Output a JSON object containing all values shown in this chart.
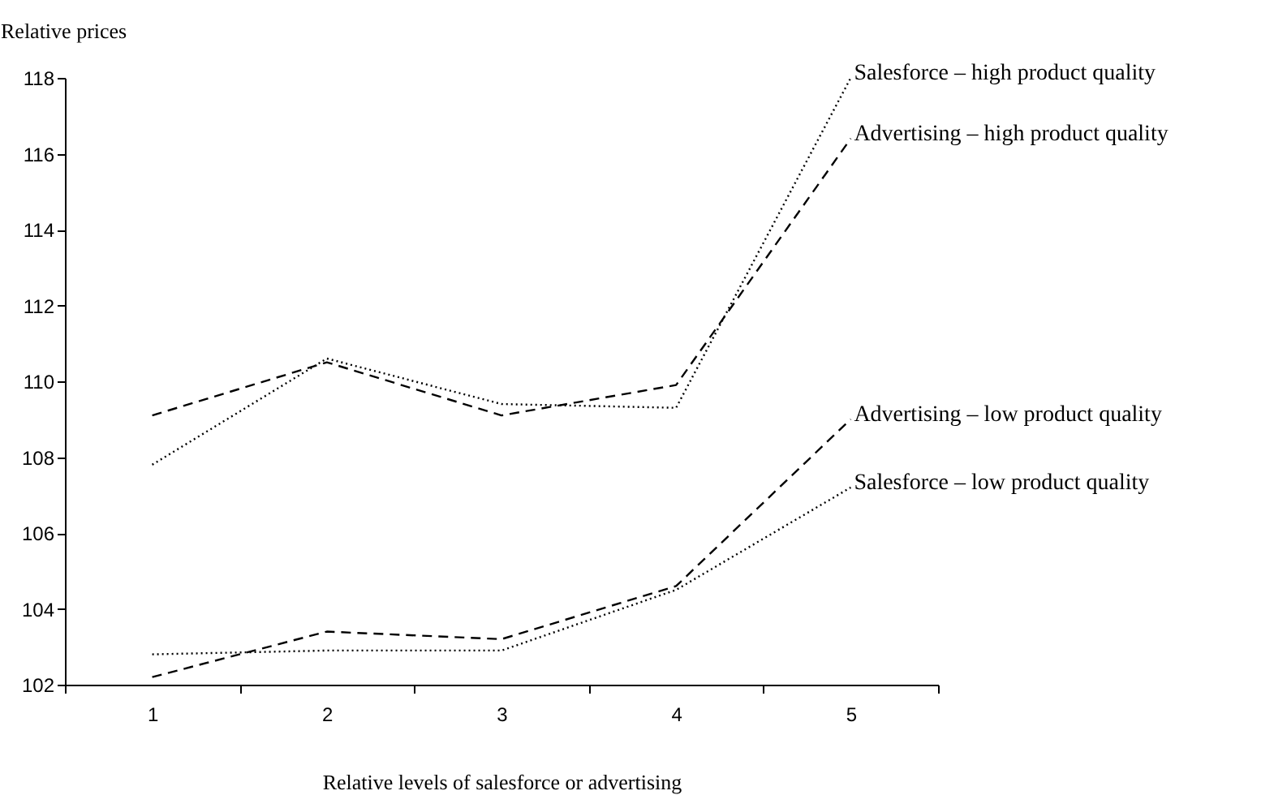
{
  "chart_data": {
    "type": "line",
    "ylabel": "Relative prices",
    "xlabel": "Relative levels of salesforce or advertising",
    "categories": [
      "1",
      "2",
      "3",
      "4",
      "5"
    ],
    "ylim": [
      102,
      118
    ],
    "yticks": [
      102,
      104,
      106,
      108,
      110,
      112,
      114,
      116,
      118
    ],
    "grid": false,
    "legend": false,
    "marker": "none",
    "series": [
      {
        "name": "Salesforce – high product quality",
        "color": "#000000",
        "line_style": "dotted",
        "values": [
          107.8,
          110.6,
          109.4,
          109.3,
          118.0
        ]
      },
      {
        "name": "Advertising – high product quality",
        "color": "#000000",
        "line_style": "dashed",
        "values": [
          109.1,
          110.5,
          109.1,
          109.9,
          116.4
        ]
      },
      {
        "name": "Advertising – low product quality",
        "color": "#000000",
        "line_style": "dashed",
        "values": [
          102.2,
          103.4,
          103.2,
          104.6,
          109.0
        ]
      },
      {
        "name": "Salesforce – low product quality",
        "color": "#000000",
        "line_style": "dotted",
        "values": [
          102.8,
          102.9,
          102.9,
          104.5,
          107.2
        ]
      }
    ]
  }
}
